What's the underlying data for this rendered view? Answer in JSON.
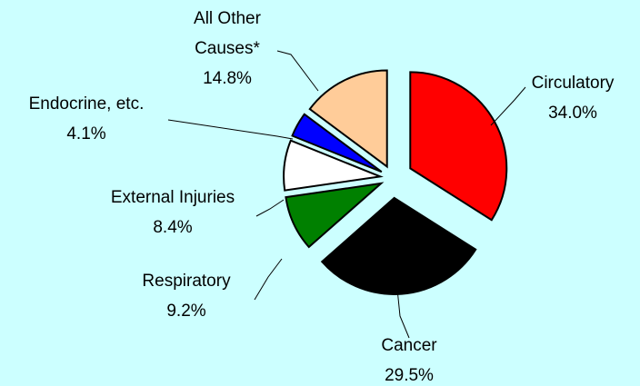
{
  "chart_data": {
    "type": "pie",
    "categories": [
      "Circulatory",
      "Cancer",
      "Respiratory",
      "External Injuries",
      "Endocrine, etc.",
      "All Other Causes*"
    ],
    "values": [
      34.0,
      29.5,
      9.2,
      8.4,
      4.1,
      14.8
    ],
    "value_labels": [
      "34.0%",
      "29.5%",
      "9.2%",
      "8.4%",
      "4.1%",
      "14.8%"
    ],
    "colors": [
      "#ff0000",
      "#000000",
      "#008000",
      "#ffffff",
      "#0000ff",
      "#ffcc99"
    ]
  }
}
